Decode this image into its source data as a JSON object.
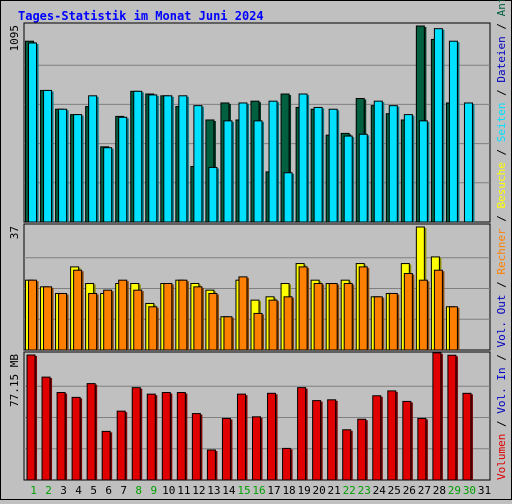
{
  "chart_data": {
    "type": "bar",
    "title": "Tages-Statistik im Monat Juni 2024",
    "categories": [
      "1",
      "2",
      "3",
      "4",
      "5",
      "6",
      "7",
      "8",
      "9",
      "10",
      "11",
      "12",
      "13",
      "14",
      "15",
      "16",
      "17",
      "18",
      "19",
      "20",
      "21",
      "22",
      "23",
      "24",
      "25",
      "26",
      "27",
      "28",
      "29",
      "30",
      "31"
    ],
    "weekend_days": [
      "1",
      "2",
      "8",
      "9",
      "15",
      "16",
      "22",
      "23",
      "29",
      "30"
    ],
    "panels": [
      {
        "id": "anfragen",
        "max_label": "1095",
        "ylim": [
          0,
          1095
        ],
        "series": [
          {
            "name": "Anfragen",
            "color": "#006040",
            "values": [
              1010,
              735,
              630,
              600,
              645,
              420,
              590,
              730,
              715,
              705,
              645,
              310,
              570,
              665,
              570,
              675,
              280,
              715,
              640,
              630,
              485,
              495,
              690,
              650,
              605,
              570,
              1095,
              1020,
              665,
              null,
              null
            ]
          },
          {
            "name": "Dateien",
            "color": "#00e0ff",
            "values": [
              1000,
              735,
              630,
              600,
              705,
              415,
              585,
              730,
              710,
              705,
              705,
              650,
              305,
              565,
              665,
              565,
              675,
              275,
              715,
              640,
              630,
              480,
              490,
              675,
              650,
              600,
              565,
              1080,
              1010,
              665,
              null
            ]
          }
        ]
      },
      {
        "id": "seiten",
        "max_label": "37",
        "ylim": [
          0,
          37
        ],
        "series": [
          {
            "name": "Seiten",
            "color": "#ffff00",
            "values": [
              21,
              19,
              17,
              25,
              20,
              17,
              20,
              20,
              14,
              20,
              21,
              20,
              18,
              10,
              21,
              15,
              16,
              20,
              26,
              21,
              20,
              21,
              26,
              16,
              17,
              26,
              37,
              28,
              13,
              null,
              null
            ]
          },
          {
            "name": "Besuche",
            "color": "#ff8000",
            "values": [
              21,
              19,
              17,
              24,
              17,
              18,
              21,
              18,
              13,
              20,
              21,
              19,
              17,
              10,
              22,
              11,
              15,
              16,
              25,
              20,
              20,
              20,
              25,
              16,
              17,
              23,
              21,
              24,
              13,
              null,
              null
            ]
          }
        ]
      },
      {
        "id": "volumen",
        "max_label": "77.15 MB",
        "ylim": [
          0,
          77.15
        ],
        "series": [
          {
            "name": "Volumen",
            "color": "#e00000",
            "values": [
              77.15,
              63.5,
              54,
              51,
              59.5,
              30,
              42.5,
              57,
              53,
              54,
              54,
              41,
              18.5,
              38,
              53,
              39,
              53.5,
              19.5,
              57,
              49,
              49.5,
              31,
              37.5,
              52,
              55,
              48.5,
              38,
              78.5,
              77,
              53.5,
              null
            ]
          }
        ]
      }
    ],
    "legend_right": [
      {
        "label": "Anfragen",
        "color": "#006040"
      },
      {
        "label": "Dateien",
        "color": "#0000c0"
      },
      {
        "label": "Seiten",
        "color": "#00e0ff"
      },
      {
        "label": "Besuche",
        "color": "#ffff00"
      },
      {
        "label": "Rechner",
        "color": "#ff8000"
      },
      {
        "label": "Vol. Out",
        "color": "#0000c0"
      },
      {
        "label": "Vol. In",
        "color": "#0000c0"
      },
      {
        "label": "Volumen",
        "color": "#e00000"
      }
    ],
    "legend_separator": " / "
  }
}
